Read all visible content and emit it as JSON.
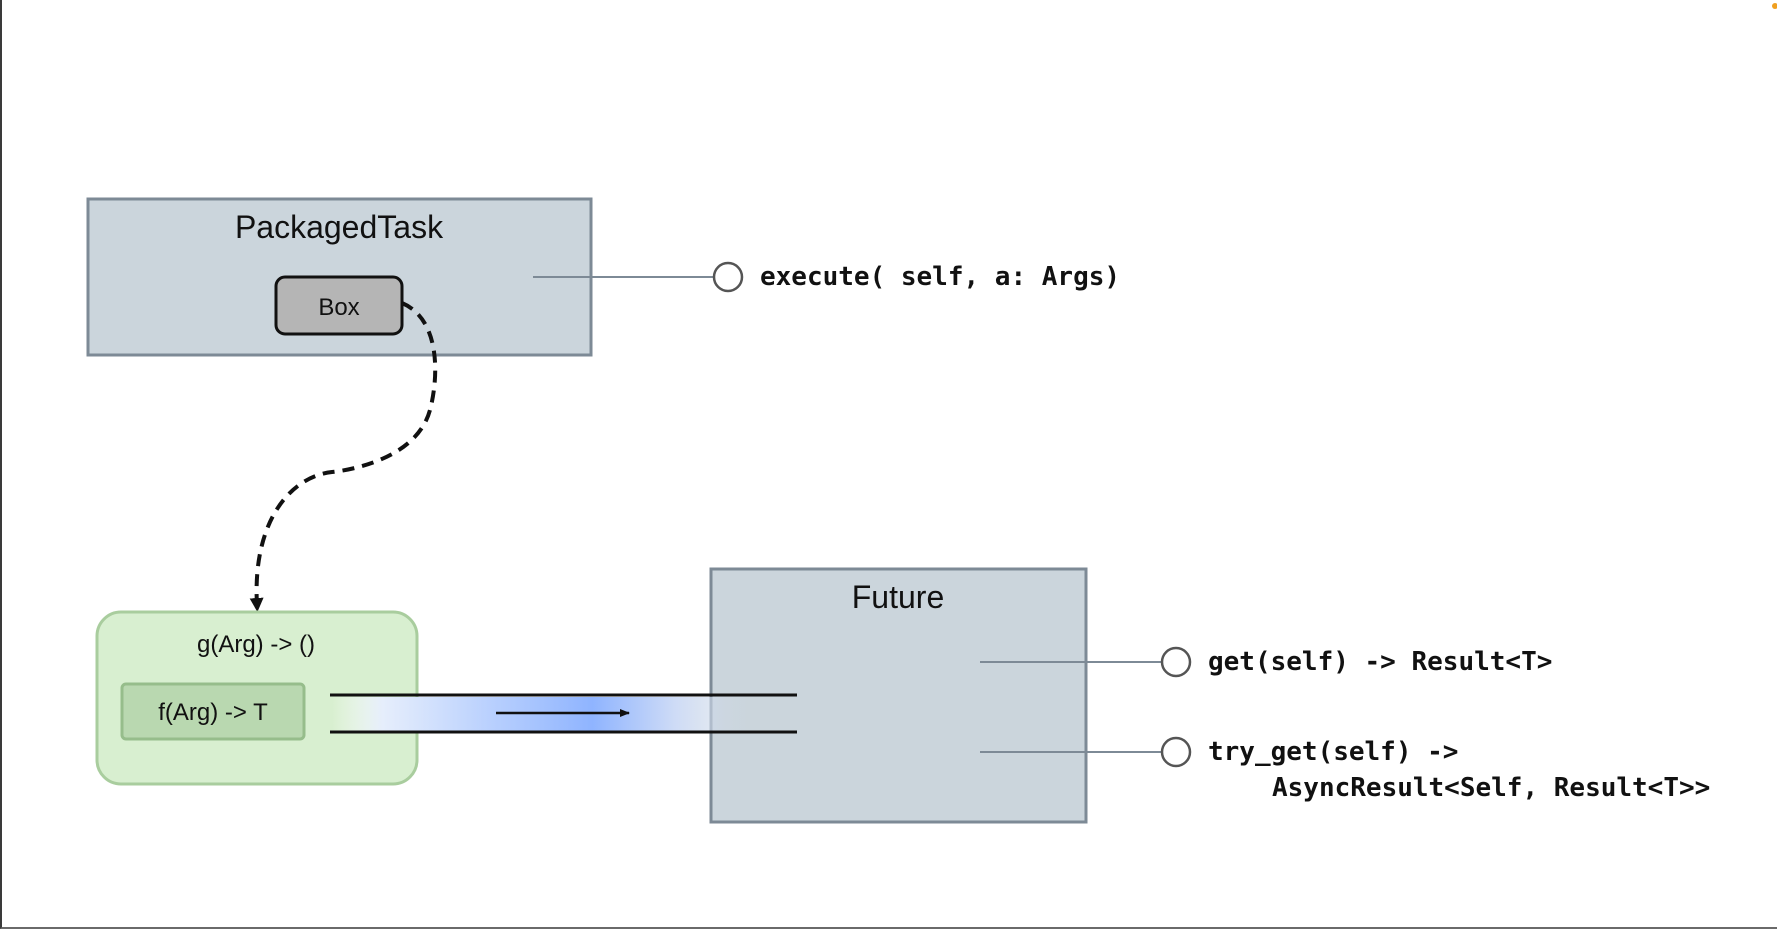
{
  "packaged_task": {
    "title": "PackagedTask",
    "box_label": "Box",
    "method": "execute( self, a: Args)"
  },
  "closure": {
    "outer_label": "g(Arg) -> ()",
    "inner_label": "f(Arg) -> T"
  },
  "future": {
    "title": "Future",
    "method_get": "get(self) -> Result<T>",
    "method_try_get_line1": "try_get(self) ->",
    "method_try_get_line2": "AsyncResult<Self, Result<T>>"
  },
  "colors": {
    "box_fill": "#cbd5dc",
    "box_stroke": "#7d8a96",
    "inner_box_fill": "#b5b5b5",
    "closure_fill": "#d8efd0",
    "closure_stroke": "#a9cd9e",
    "closure_inner_fill": "#b9d8b0",
    "channel_glow": "#8fb4ff"
  }
}
